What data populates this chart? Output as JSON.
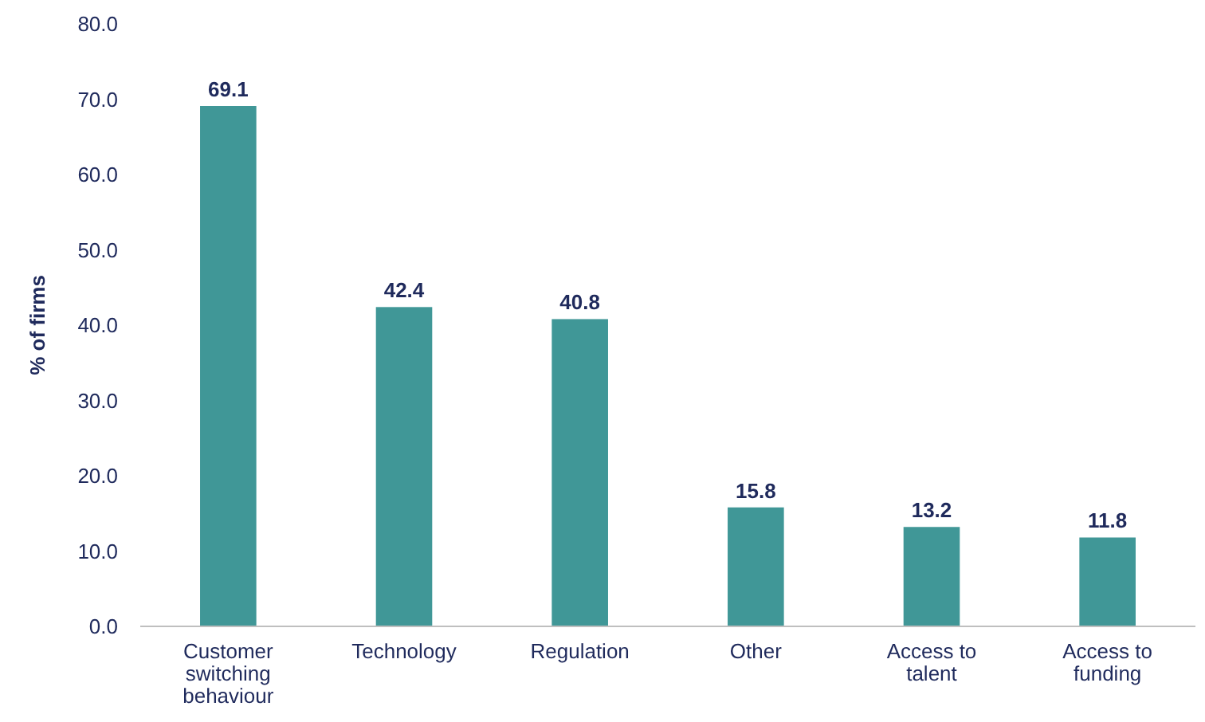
{
  "chart_data": {
    "type": "bar",
    "ylabel": "% of firms",
    "categories": [
      "Customer switching behaviour",
      "Technology",
      "Regulation",
      "Other",
      "Access to talent",
      "Access to funding"
    ],
    "values": [
      69.1,
      42.4,
      40.8,
      15.8,
      13.2,
      11.8
    ],
    "color": "#409797",
    "ylim": [
      0,
      80
    ],
    "yticks": [
      {
        "value": 0,
        "label": "0.0"
      },
      {
        "value": 10,
        "label": "10.0"
      },
      {
        "value": 20,
        "label": "20.0"
      },
      {
        "value": 30,
        "label": "30.0"
      },
      {
        "value": 40,
        "label": "40.0"
      },
      {
        "value": 50,
        "label": "50.0"
      },
      {
        "value": 60,
        "label": "60.0"
      },
      {
        "value": 70,
        "label": "70.0"
      },
      {
        "value": 80,
        "label": "80.0"
      }
    ],
    "data_labels": true
  }
}
